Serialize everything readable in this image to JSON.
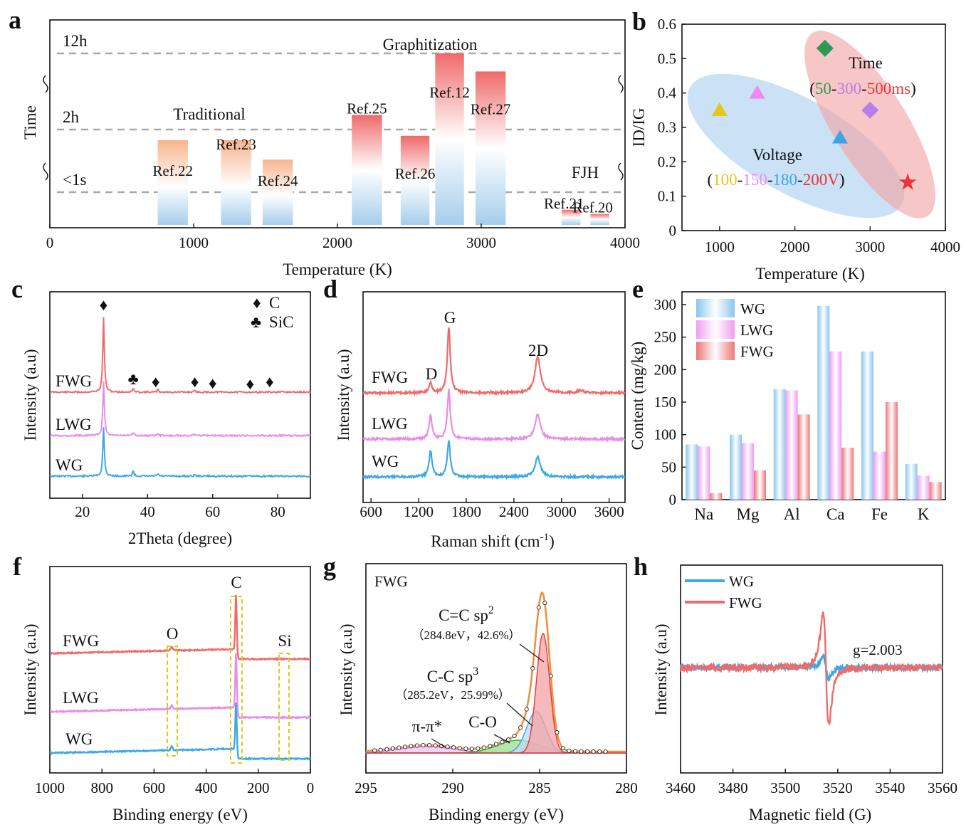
{
  "chart_data": [
    {
      "id": "a",
      "type": "bar",
      "panel_label": "a",
      "xlabel": "Temperature (K)",
      "ylabel": "Time",
      "xlim": [
        0,
        4000
      ],
      "xticks": [
        0,
        1000,
        2000,
        3000,
        4000
      ],
      "time_levels": [
        "12h",
        "2h",
        "<1s"
      ],
      "groups": [
        {
          "name": "Traditional",
          "kind": "traditional"
        },
        {
          "name": "Graphitization",
          "kind": "graphitization"
        },
        {
          "name": "FJH",
          "kind": "fjh"
        }
      ],
      "bars": [
        {
          "ref": "Ref.22",
          "x_start": 750,
          "x_end": 960,
          "time_level": 1.83,
          "group": "Traditional"
        },
        {
          "ref": "Ref.23",
          "x_start": 1190,
          "x_end": 1400,
          "time_level": 1.83,
          "group": "Traditional"
        },
        {
          "ref": "Ref.24",
          "x_start": 1480,
          "x_end": 1690,
          "time_level": 1.52,
          "group": "Traditional"
        },
        {
          "ref": "Ref.25",
          "x_start": 2100,
          "x_end": 2310,
          "time_level": 2.2,
          "group": "Graphitization"
        },
        {
          "ref": "Ref.26",
          "x_start": 2440,
          "x_end": 2640,
          "time_level": 1.9,
          "group": "Graphitization"
        },
        {
          "ref": "Ref.12",
          "x_start": 2680,
          "x_end": 2880,
          "time_level": 3.05,
          "group": "Graphitization"
        },
        {
          "ref": "Ref.27",
          "x_start": 2960,
          "x_end": 3170,
          "time_level": 2.8,
          "group": "Graphitization"
        },
        {
          "ref": "Ref.21",
          "x_start": 3560,
          "x_end": 3690,
          "time_level": 0.45,
          "group": "FJH"
        },
        {
          "ref": "Ref.20",
          "x_start": 3760,
          "x_end": 3890,
          "time_level": 0.32,
          "group": "FJH"
        }
      ]
    },
    {
      "id": "b",
      "type": "scatter",
      "panel_label": "b",
      "xlabel": "Temperature (K)",
      "ylabel": "ID/IG",
      "xlim": [
        500,
        4000
      ],
      "ylim": [
        0,
        0.6
      ],
      "xticks": [
        1000,
        2000,
        3000,
        4000
      ],
      "yticks": [
        0.0,
        0.1,
        0.2,
        0.3,
        0.4,
        0.5,
        0.6
      ],
      "series": [
        {
          "name": "Voltage 100V",
          "marker": "triangle",
          "color": "#e6c619",
          "points": [
            [
              1000,
              0.35
            ]
          ]
        },
        {
          "name": "Voltage 150V",
          "marker": "triangle",
          "color": "#ee8aee",
          "points": [
            [
              1500,
              0.4
            ]
          ]
        },
        {
          "name": "Voltage 180V",
          "marker": "triangle",
          "color": "#3ea2e6",
          "points": [
            [
              2600,
              0.27
            ]
          ]
        },
        {
          "name": "Time 50ms",
          "marker": "diamond",
          "color": "#2b9a55",
          "points": [
            [
              2400,
              0.53
            ]
          ]
        },
        {
          "name": "Time 300ms",
          "marker": "diamond",
          "color": "#b77ee8",
          "points": [
            [
              3000,
              0.35
            ]
          ]
        },
        {
          "name": "200V / 500ms",
          "marker": "star",
          "color": "#e8343a",
          "points": [
            [
              3500,
              0.14
            ]
          ]
        }
      ],
      "annotations": {
        "time_title": "Time",
        "time_open": "(",
        "time_v1": "50",
        "time_d1": "-",
        "time_v2": "300",
        "time_d2": "-",
        "time_v3": "500ms",
        "time_close": ")",
        "volt_title": "Voltage",
        "volt_open": "(",
        "volt_v1": "100",
        "volt_d1": "-",
        "volt_v2": "150",
        "volt_d2": "-",
        "volt_v3": "180",
        "volt_d3": "-",
        "volt_v4": "200V",
        "volt_close": ")"
      }
    },
    {
      "id": "c",
      "type": "line",
      "panel_label": "c",
      "xlabel": "2Theta (degree)",
      "ylabel": "Intensity (a.u)",
      "xlim": [
        10,
        90
      ],
      "xticks": [
        20,
        40,
        60,
        80
      ],
      "series": [
        {
          "name": "FWG",
          "color": "#ee6b6b",
          "offset": 2.0,
          "peaks": [
            [
              26.5,
              1.0
            ],
            [
              35.6,
              0.05
            ],
            [
              43.2,
              0.03
            ],
            [
              54.5,
              0.02
            ]
          ]
        },
        {
          "name": "LWG",
          "color": "#e58ee8",
          "offset": 1.0,
          "peaks": [
            [
              26.5,
              0.72
            ],
            [
              35.6,
              0.04
            ],
            [
              43.2,
              0.03
            ],
            [
              54.5,
              0.02
            ]
          ]
        },
        {
          "name": "WG",
          "color": "#3ea8e6",
          "offset": 0.0,
          "peaks": [
            [
              26.5,
              0.65
            ],
            [
              35.6,
              0.07
            ],
            [
              43.2,
              0.03
            ],
            [
              54.5,
              0.02
            ]
          ]
        }
      ],
      "markers": {
        "C": [
          26.5,
          42.5,
          54.5,
          60.0,
          71.5,
          77.5
        ],
        "SiC": [
          35.6
        ]
      },
      "legend": [
        {
          "symbol": "♦",
          "label": "C"
        },
        {
          "symbol": "♣",
          "label": "SiC"
        }
      ]
    },
    {
      "id": "d",
      "type": "line",
      "panel_label": "d",
      "xlabel": "Raman shift (cm",
      "xlabel_sup": "-1",
      "xlabel_end": ")",
      "ylabel": "Intensity (a.u)",
      "xlim": [
        500,
        3800
      ],
      "xticks": [
        600,
        1200,
        1800,
        2400,
        3000,
        3600
      ],
      "series": [
        {
          "name": "FWG",
          "color": "#ee6b6b",
          "offset": 2.0,
          "peaks": [
            [
              1350,
              0.15
            ],
            [
              1580,
              1.0
            ],
            [
              2700,
              0.55
            ],
            [
              3245,
              0.04
            ]
          ]
        },
        {
          "name": "LWG",
          "color": "#e58ee8",
          "offset": 1.0,
          "peaks": [
            [
              1350,
              0.35
            ],
            [
              1580,
              0.75
            ],
            [
              2700,
              0.38
            ]
          ]
        },
        {
          "name": "WG",
          "color": "#3ea8e6",
          "offset": 0.0,
          "peaks": [
            [
              1350,
              0.4
            ],
            [
              1580,
              0.55
            ],
            [
              2700,
              0.3
            ]
          ]
        }
      ],
      "peak_labels": [
        "D",
        "G",
        "2D"
      ]
    },
    {
      "id": "e",
      "type": "bar",
      "panel_label": "e",
      "xlabel": "",
      "ylabel": "Content (mg/kg)",
      "ylim": [
        0,
        300
      ],
      "yticks": [
        0,
        50,
        100,
        150,
        200,
        250,
        300
      ],
      "categories": [
        "Na",
        "Mg",
        "Al",
        "Ca",
        "Fe",
        "K"
      ],
      "series": [
        {
          "name": "WG",
          "color": "#9fd2f1",
          "values": [
            85,
            100,
            170,
            298,
            228,
            55
          ]
        },
        {
          "name": "LWG",
          "color": "#f3b4f3",
          "values": [
            82,
            87,
            168,
            228,
            74,
            37
          ]
        },
        {
          "name": "FWG",
          "color": "#f29a9a",
          "values": [
            10,
            45,
            131,
            80,
            150,
            27
          ]
        }
      ]
    },
    {
      "id": "f",
      "type": "line",
      "panel_label": "f",
      "xlabel": "Binding energy (eV)",
      "ylabel": "Intensity (a.u)",
      "xlim": [
        1000,
        0
      ],
      "xticks": [
        1000,
        800,
        600,
        400,
        200,
        0
      ],
      "series": [
        {
          "name": "FWG",
          "color": "#ee6b6b",
          "offset": 2.0
        },
        {
          "name": "LWG",
          "color": "#e58ee8",
          "offset": 1.0
        },
        {
          "name": "WG",
          "color": "#3ea8e6",
          "offset": 0.0
        }
      ],
      "peak_labels": [
        "O",
        "C",
        "Si"
      ]
    },
    {
      "id": "g",
      "type": "line",
      "panel_label": "g",
      "xlabel": "Binding energy (eV)",
      "ylabel": "Intensity (a.u)",
      "xlim": [
        295,
        280
      ],
      "xticks": [
        295,
        290,
        285,
        280
      ],
      "sample": "FWG",
      "components": [
        {
          "name": "C=C sp2",
          "center": 284.8,
          "area": "42.6%",
          "color": "#e8343a"
        },
        {
          "name": "C-C sp3",
          "center": 285.2,
          "area": "25.99%",
          "color": "#3ea2e6"
        },
        {
          "name": "C-O",
          "center": 286.2,
          "color": "#2bb33a"
        },
        {
          "name": "π-π*",
          "center": 291.5,
          "color": "#d27ad6"
        }
      ],
      "labels": {
        "sp2_main": "C=C sp",
        "sp2_sup": "2",
        "sp2_detail": "（284.8eV，42.6%）",
        "sp3_main": "C-C sp",
        "sp3_sup": "3",
        "sp3_detail": "（285.2eV，25.99%）",
        "co": "C-O",
        "pi": "π-π*"
      }
    },
    {
      "id": "h",
      "type": "line",
      "panel_label": "h",
      "xlabel": "Magnetic field (G)",
      "ylabel": "Intensity (a.u)",
      "xlim": [
        3460,
        3560
      ],
      "xticks": [
        3460,
        3480,
        3500,
        3520,
        3540,
        3560
      ],
      "series": [
        {
          "name": "WG",
          "color": "#3ea8e6",
          "amplitude": 0.2
        },
        {
          "name": "FWG",
          "color": "#ee6b6b",
          "amplitude": 1.0
        }
      ],
      "annotation": "g=2.003"
    }
  ]
}
